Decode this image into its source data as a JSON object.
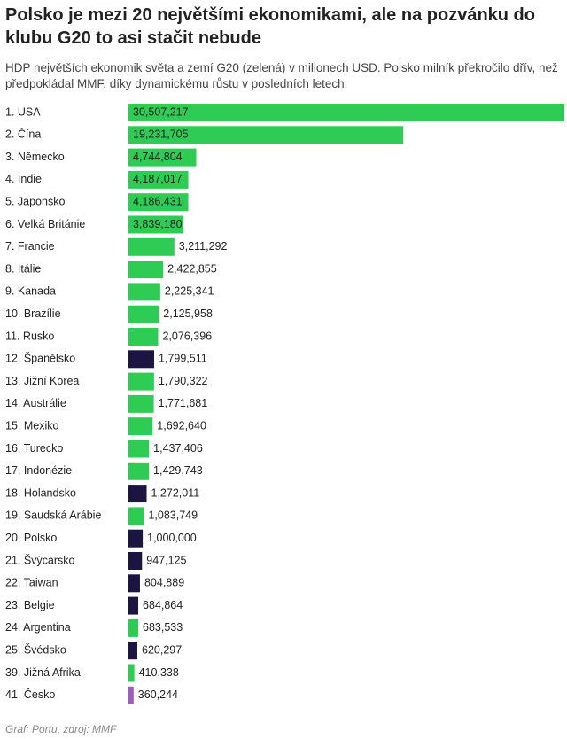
{
  "chart_data": {
    "type": "bar",
    "orientation": "horizontal",
    "title": "Polsko je mezi 20 největšími ekonomikami, ale na pozvánku do klubu G20 to asi stačit nebude",
    "subtitle": "HDP největších ekonomik světa a zemí G20 (zelená) v milionech USD. Polsko milník překročilo dřív, než předpokládal MMF, díky dynamickému růstu v posledních letech.",
    "source": "Graf: Portu, zdroj: MMF",
    "categories": [
      "1. USA",
      "2. Čína",
      "3. Německo",
      "4. Indie",
      "5. Japonsko",
      "6. Velká Británie",
      "7. Francie",
      "8. Itálie",
      "9. Kanada",
      "10. Brazílie",
      "11. Rusko",
      "12. Španělsko",
      "13. Jižní Korea",
      "14. Austrálie",
      "15. Mexiko",
      "16. Turecko",
      "17. Indonézie",
      "18. Holandsko",
      "19. Saudská Arábie",
      "20. Polsko",
      "21. Švýcarsko",
      "22. Taiwan",
      "23. Belgie",
      "24. Argentina",
      "25. Švédsko",
      "39. Jižná Afrika",
      "41. Česko"
    ],
    "values": [
      30507217,
      19231705,
      4744804,
      4187017,
      4186431,
      3839180,
      3211292,
      2422855,
      2225341,
      2125958,
      2076396,
      1799511,
      1790322,
      1771681,
      1692640,
      1437406,
      1429743,
      1272011,
      1083749,
      1000000,
      947125,
      804889,
      684864,
      683533,
      620297,
      410338,
      360244
    ],
    "value_labels": [
      "30,507,217",
      "19,231,705",
      "4,744,804",
      "4,187,017",
      "4,186,431",
      "3,839,180",
      "3,211,292",
      "2,422,855",
      "2,225,341",
      "2,125,958",
      "2,076,396",
      "1,799,511",
      "1,790,322",
      "1,771,681",
      "1,692,640",
      "1,437,406",
      "1,429,743",
      "1,272,011",
      "1,083,749",
      "1,000,000",
      "947,125",
      "804,889",
      "684,864",
      "683,533",
      "620,297",
      "410,338",
      "360,244"
    ],
    "colors": [
      "#2ecc55",
      "#2ecc55",
      "#2ecc55",
      "#2ecc55",
      "#2ecc55",
      "#2ecc55",
      "#2ecc55",
      "#2ecc55",
      "#2ecc55",
      "#2ecc55",
      "#2ecc55",
      "#1c1541",
      "#2ecc55",
      "#2ecc55",
      "#2ecc55",
      "#2ecc55",
      "#2ecc55",
      "#1c1541",
      "#2ecc55",
      "#1c1541",
      "#1c1541",
      "#1c1541",
      "#1c1541",
      "#2ecc55",
      "#1c1541",
      "#2ecc55",
      "#a05bbf"
    ]
  }
}
